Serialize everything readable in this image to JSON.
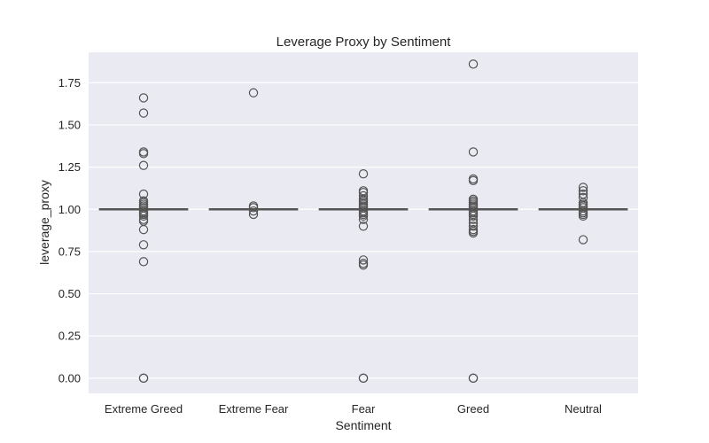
{
  "chart_data": {
    "type": "box",
    "title": "Leverage Proxy by Sentiment",
    "xlabel": "Sentiment",
    "ylabel": "leverage_proxy",
    "categories": [
      "Extreme Greed",
      "Extreme Fear",
      "Fear",
      "Greed",
      "Neutral"
    ],
    "ylim": [
      -0.09,
      1.93
    ],
    "yticks": [
      0.0,
      0.25,
      0.5,
      0.75,
      1.0,
      1.25,
      1.5,
      1.75
    ],
    "ytick_labels": [
      "0.00",
      "0.25",
      "0.50",
      "0.75",
      "1.00",
      "1.25",
      "1.50",
      "1.75"
    ],
    "grid": true,
    "boxes": [
      {
        "category": "Extreme Greed",
        "q1": 1.0,
        "median": 1.0,
        "q3": 1.0,
        "whisker_low": 1.0,
        "whisker_high": 1.0,
        "outliers": [
          1.66,
          1.57,
          1.34,
          1.33,
          1.26,
          1.09,
          1.05,
          1.04,
          1.03,
          1.02,
          1.01,
          0.99,
          0.98,
          0.97,
          0.96,
          0.94,
          0.93,
          0.88,
          0.79,
          0.69,
          0.0,
          0.0
        ]
      },
      {
        "category": "Extreme Fear",
        "q1": 1.0,
        "median": 1.0,
        "q3": 1.0,
        "whisker_low": 1.0,
        "whisker_high": 1.0,
        "outliers": [
          1.69,
          1.02,
          1.01,
          0.99,
          0.97
        ]
      },
      {
        "category": "Fear",
        "q1": 1.0,
        "median": 1.0,
        "q3": 1.0,
        "whisker_low": 1.0,
        "whisker_high": 1.0,
        "outliers": [
          1.21,
          1.11,
          1.1,
          1.08,
          1.06,
          1.05,
          1.04,
          1.03,
          1.02,
          1.01,
          0.99,
          0.98,
          0.97,
          0.96,
          0.94,
          0.9,
          0.7,
          0.68,
          0.67,
          0.0,
          0.0
        ]
      },
      {
        "category": "Greed",
        "q1": 1.0,
        "median": 1.0,
        "q3": 1.0,
        "whisker_low": 1.0,
        "whisker_high": 1.0,
        "outliers": [
          1.86,
          1.34,
          1.18,
          1.17,
          1.06,
          1.05,
          1.04,
          1.03,
          1.02,
          1.01,
          0.99,
          0.98,
          0.97,
          0.96,
          0.94,
          0.92,
          0.9,
          0.88,
          0.87,
          0.86,
          0.0,
          0.0
        ]
      },
      {
        "category": "Neutral",
        "q1": 1.0,
        "median": 1.0,
        "q3": 1.0,
        "whisker_low": 1.0,
        "whisker_high": 1.0,
        "outliers": [
          1.13,
          1.11,
          1.09,
          1.07,
          1.04,
          1.03,
          1.02,
          1.01,
          0.99,
          0.98,
          0.97,
          0.96,
          0.82
        ]
      }
    ],
    "colors": {
      "plot_background": "#eaeaf2",
      "grid": "#ffffff",
      "box_edge": "#555555",
      "text": "#262626"
    }
  }
}
